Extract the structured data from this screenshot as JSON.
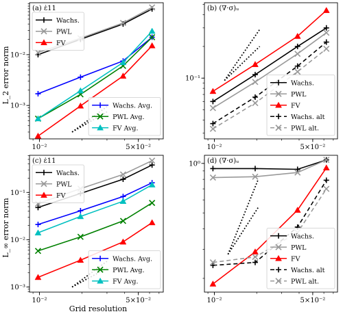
{
  "figure": {
    "ylabel_top": "L_2 error norm",
    "ylabel_bottom": "L_∞ error norm",
    "xlabel": "Grid resolution"
  },
  "chart_data": [
    {
      "id": "a",
      "type": "line",
      "title": "(a) ε̇11",
      "xscale": "log",
      "yscale": "log",
      "xlim": [
        0.0085,
        0.075
      ],
      "ylim": [
        0.00022,
        0.105
      ],
      "xticks": [
        {
          "v": 0.01,
          "label": "10⁻²"
        },
        {
          "v": 0.05,
          "label": "5×10⁻²"
        }
      ],
      "yticks": [
        {
          "v": 0.001,
          "label": "10⁻³"
        },
        {
          "v": 0.01,
          "label": "10⁻²"
        }
      ],
      "series": [
        {
          "name": "Wachs.",
          "color": "#000000",
          "marker": "plus",
          "dash": "",
          "x": [
            0.00977,
            0.0195,
            0.039,
            0.0625
          ],
          "y": [
            0.01,
            0.02,
            0.04,
            0.079
          ]
        },
        {
          "name": "PWL",
          "color": "#999999",
          "marker": "x",
          "dash": "",
          "x": [
            0.00977,
            0.0195,
            0.039,
            0.0625
          ],
          "y": [
            0.011,
            0.021,
            0.042,
            0.085
          ]
        },
        {
          "name": "FV",
          "color": "#ff0000",
          "marker": "tri",
          "dash": "",
          "x": [
            0.00977,
            0.0195,
            0.039,
            0.0625
          ],
          "y": [
            0.00025,
            0.00098,
            0.0038,
            0.015
          ]
        },
        {
          "name": "Wachs. Avg.",
          "color": "#0000ff",
          "marker": "plus",
          "dash": "",
          "x": [
            0.00977,
            0.0195,
            0.039,
            0.0625
          ],
          "y": [
            0.0017,
            0.0036,
            0.0075,
            0.022
          ]
        },
        {
          "name": "PWL Avg.",
          "color": "#008000",
          "marker": "x",
          "dash": "",
          "x": [
            0.00977,
            0.0195,
            0.039,
            0.0625
          ],
          "y": [
            0.00055,
            0.00165,
            0.006,
            0.022
          ]
        },
        {
          "name": "FV Avg.",
          "color": "#00c0c0",
          "marker": "tri",
          "dash": "",
          "x": [
            0.00977,
            0.0195,
            0.039,
            0.0625
          ],
          "y": [
            0.00055,
            0.00195,
            0.007,
            0.029
          ]
        }
      ],
      "ref_lines": [
        {
          "x": [
            0.017,
            0.03
          ],
          "y": [
            0.0003,
            0.00075
          ]
        },
        {
          "x": [
            0.017,
            0.03
          ],
          "y": [
            0.0003,
            0.00095
          ]
        }
      ],
      "legends": [
        {
          "pos": "top-left",
          "items": [
            0,
            1,
            2
          ]
        },
        {
          "pos": "bottom-right",
          "items": [
            3,
            4,
            5
          ]
        }
      ]
    },
    {
      "id": "b",
      "type": "line",
      "title": "(b) (∇·σ)ᵤ",
      "xscale": "log",
      "yscale": "log",
      "xlim": [
        0.0085,
        0.075
      ],
      "ylim": [
        0.0265,
        0.52
      ],
      "xticks": [
        {
          "v": 0.01,
          "label": "10⁻²"
        },
        {
          "v": 0.05,
          "label": "5×10⁻²"
        }
      ],
      "yticks": [
        {
          "v": 0.1,
          "label": "10⁻¹"
        }
      ],
      "series": [
        {
          "name": "Wachs.",
          "color": "#000000",
          "marker": "plus",
          "dash": "",
          "x": [
            0.00977,
            0.0195,
            0.039,
            0.0625
          ],
          "y": [
            0.06,
            0.108,
            0.2,
            0.3
          ]
        },
        {
          "name": "PWL",
          "color": "#999999",
          "marker": "x",
          "dash": "",
          "x": [
            0.00977,
            0.0195,
            0.039,
            0.0625
          ],
          "y": [
            0.052,
            0.092,
            0.17,
            0.27
          ]
        },
        {
          "name": "FV",
          "color": "#ff0000",
          "marker": "tri",
          "dash": "",
          "x": [
            0.00977,
            0.0195,
            0.039,
            0.0625
          ],
          "y": [
            0.075,
            0.135,
            0.25,
            0.44
          ]
        },
        {
          "name": "Wachs. alt",
          "color": "#000000",
          "marker": "plus",
          "dash": "6,4",
          "x": [
            0.00977,
            0.0195,
            0.039,
            0.0625
          ],
          "y": [
            0.037,
            0.066,
            0.13,
            0.22
          ]
        },
        {
          "name": "PWL alt.",
          "color": "#999999",
          "marker": "x",
          "dash": "6,4",
          "x": [
            0.00977,
            0.0195,
            0.039,
            0.0625
          ],
          "y": [
            0.033,
            0.058,
            0.115,
            0.19
          ]
        }
      ],
      "ref_lines": [
        {
          "x": [
            0.0118,
            0.021
          ],
          "y": [
            0.095,
            0.2
          ]
        },
        {
          "x": [
            0.0118,
            0.021
          ],
          "y": [
            0.095,
            0.29
          ]
        }
      ],
      "legends": [
        {
          "pos": "bottom-right",
          "items": [
            0,
            1,
            2,
            3,
            4
          ]
        }
      ]
    },
    {
      "id": "c",
      "type": "line",
      "title": "(c) ε̇11",
      "xscale": "log",
      "yscale": "log",
      "xlim": [
        0.0085,
        0.075
      ],
      "ylim": [
        0.00078,
        0.61
      ],
      "xticks": [
        {
          "v": 0.01,
          "label": "10⁻²"
        },
        {
          "v": 0.05,
          "label": "5×10⁻²"
        }
      ],
      "yticks": [
        {
          "v": 0.001,
          "label": "10⁻³"
        },
        {
          "v": 0.01,
          "label": "10⁻²"
        },
        {
          "v": 0.1,
          "label": "10⁻¹"
        }
      ],
      "series": [
        {
          "name": "Wachs.",
          "color": "#000000",
          "marker": "plus",
          "dash": "",
          "x": [
            0.00977,
            0.0195,
            0.039,
            0.0625
          ],
          "y": [
            0.048,
            0.095,
            0.19,
            0.38
          ]
        },
        {
          "name": "PWL",
          "color": "#999999",
          "marker": "x",
          "dash": "",
          "x": [
            0.00977,
            0.0195,
            0.039,
            0.0625
          ],
          "y": [
            0.058,
            0.12,
            0.24,
            0.47
          ]
        },
        {
          "name": "FV",
          "color": "#ff0000",
          "marker": "tri",
          "dash": "",
          "x": [
            0.00977,
            0.0195,
            0.039,
            0.0625
          ],
          "y": [
            0.0016,
            0.0037,
            0.009,
            0.023
          ]
        },
        {
          "name": "Wachs. Avg.",
          "color": "#0000ff",
          "marker": "plus",
          "dash": "",
          "x": [
            0.00977,
            0.0195,
            0.039,
            0.0625
          ],
          "y": [
            0.021,
            0.041,
            0.082,
            0.16
          ]
        },
        {
          "name": "PWL Avg.",
          "color": "#008000",
          "marker": "x",
          "dash": "",
          "x": [
            0.00977,
            0.0195,
            0.039,
            0.0625
          ],
          "y": [
            0.0058,
            0.0115,
            0.025,
            0.06
          ]
        },
        {
          "name": "FV Avg.",
          "color": "#00c0c0",
          "marker": "tri",
          "dash": "",
          "x": [
            0.00977,
            0.0195,
            0.039,
            0.0625
          ],
          "y": [
            0.014,
            0.031,
            0.065,
            0.145
          ]
        }
      ],
      "ref_lines": [
        {
          "x": [
            0.017,
            0.03
          ],
          "y": [
            0.001,
            0.0025
          ]
        },
        {
          "x": [
            0.017,
            0.03
          ],
          "y": [
            0.001,
            0.0035
          ]
        }
      ],
      "legends": [
        {
          "pos": "top-left",
          "items": [
            0,
            1,
            2
          ]
        },
        {
          "pos": "bottom-right",
          "items": [
            3,
            4,
            5
          ]
        }
      ]
    },
    {
      "id": "d",
      "type": "line",
      "title": "(d) (∇·σ)ᵤ",
      "xscale": "log",
      "yscale": "log",
      "xlim": [
        0.0085,
        0.075
      ],
      "ylim": [
        0.165,
        1.12
      ],
      "xticks": [
        {
          "v": 0.01,
          "label": "10⁻²"
        },
        {
          "v": 0.05,
          "label": "5×10⁻²"
        }
      ],
      "yticks": [
        {
          "v": 1.0,
          "label": "10⁰"
        }
      ],
      "series": [
        {
          "name": "Wachs.",
          "color": "#000000",
          "marker": "plus",
          "dash": "",
          "x": [
            0.00977,
            0.0195,
            0.039,
            0.0625
          ],
          "y": [
            0.93,
            0.93,
            0.92,
            1.05
          ]
        },
        {
          "name": "PWL",
          "color": "#999999",
          "marker": "x",
          "dash": "",
          "x": [
            0.00977,
            0.0195,
            0.039,
            0.0625
          ],
          "y": [
            0.82,
            0.83,
            0.88,
            1.05
          ]
        },
        {
          "name": "FV",
          "color": "#ff0000",
          "marker": "tri",
          "dash": "",
          "x": [
            0.00977,
            0.0195,
            0.039,
            0.0625
          ],
          "y": [
            0.185,
            0.29,
            0.52,
            0.94
          ]
        },
        {
          "name": "Wachs. alt",
          "color": "#000000",
          "marker": "plus",
          "dash": "6,4",
          "x": [
            0.00977,
            0.0195,
            0.039,
            0.0625
          ],
          "y": [
            0.24,
            0.25,
            0.41,
            0.79
          ]
        },
        {
          "name": "PWL alt.",
          "color": "#999999",
          "marker": "x",
          "dash": "6,4",
          "x": [
            0.00977,
            0.0195,
            0.039,
            0.0625
          ],
          "y": [
            0.25,
            0.27,
            0.38,
            0.7
          ]
        }
      ],
      "ref_lines": [
        {
          "x": [
            0.0125,
            0.0205
          ],
          "y": [
            0.28,
            0.54
          ]
        },
        {
          "x": [
            0.0125,
            0.0205
          ],
          "y": [
            0.28,
            0.8
          ]
        }
      ],
      "legends": [
        {
          "pos": "bottom-right",
          "items": [
            0,
            1,
            2,
            3,
            4
          ]
        }
      ]
    }
  ]
}
